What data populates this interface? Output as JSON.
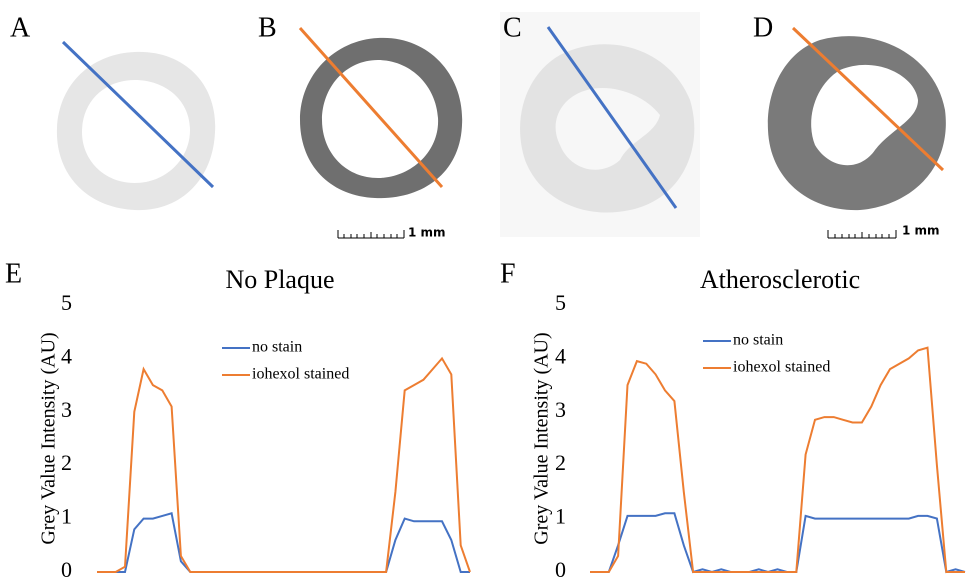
{
  "panels": {
    "labels": [
      "A",
      "B",
      "C",
      "D",
      "E",
      "F"
    ],
    "scale_bars": [
      "1 mm",
      "1 mm"
    ]
  },
  "chart_data": [
    {
      "type": "line",
      "title": "No Plaque",
      "y_label": "Grey Value Intensity (AU)",
      "ylim": [
        0,
        5
      ],
      "yticks": [
        0,
        1,
        2,
        3,
        4,
        5
      ],
      "legend": "top-center",
      "grid": false,
      "series": [
        {
          "name": "no stain",
          "color": "#4472c4",
          "values": [
            0,
            0,
            0,
            0,
            0.8,
            1.0,
            1.0,
            1.05,
            1.1,
            0.2,
            0,
            0,
            0,
            0,
            0,
            0,
            0,
            0,
            0,
            0,
            0,
            0,
            0,
            0,
            0,
            0,
            0,
            0,
            0,
            0,
            0,
            0,
            0.6,
            1.0,
            0.95,
            0.95,
            0.95,
            0.95,
            0.6,
            0,
            0
          ]
        },
        {
          "name": "iohexol stained",
          "color": "#ed7d31",
          "values": [
            0,
            0,
            0,
            0.1,
            3.0,
            3.8,
            3.5,
            3.4,
            3.1,
            0.3,
            0,
            0,
            0,
            0,
            0,
            0,
            0,
            0,
            0,
            0,
            0,
            0,
            0,
            0,
            0,
            0,
            0,
            0,
            0,
            0,
            0,
            0,
            1.5,
            3.4,
            3.5,
            3.6,
            3.8,
            4.0,
            3.7,
            0.5,
            0
          ]
        }
      ]
    },
    {
      "type": "line",
      "title": "Atherosclerotic",
      "y_label": "Grey Value Intensity (AU)",
      "ylim": [
        0,
        5
      ],
      "yticks": [
        0,
        1,
        2,
        3,
        4,
        5
      ],
      "legend": "top-center",
      "grid": false,
      "series": [
        {
          "name": "no stain",
          "color": "#4472c4",
          "values": [
            0,
            0,
            0,
            0.5,
            1.05,
            1.05,
            1.05,
            1.05,
            1.1,
            1.1,
            0.5,
            0,
            0.05,
            0,
            0.05,
            0,
            0,
            0,
            0.05,
            0,
            0.05,
            0,
            0,
            1.05,
            1.0,
            1.0,
            1.0,
            1.0,
            1.0,
            1.0,
            1.0,
            1.0,
            1.0,
            1.0,
            1.0,
            1.05,
            1.05,
            1.0,
            0,
            0.05,
            0
          ]
        },
        {
          "name": "iohexol stained",
          "color": "#ed7d31",
          "values": [
            0,
            0,
            0,
            0.3,
            3.5,
            3.95,
            3.9,
            3.7,
            3.4,
            3.2,
            1.5,
            0,
            0,
            0,
            0,
            0,
            0,
            0,
            0,
            0,
            0,
            0,
            0,
            2.2,
            2.85,
            2.9,
            2.9,
            2.85,
            2.8,
            2.8,
            3.1,
            3.5,
            3.8,
            3.9,
            4.0,
            4.15,
            4.2,
            2.0,
            0,
            0,
            0
          ]
        }
      ]
    }
  ]
}
